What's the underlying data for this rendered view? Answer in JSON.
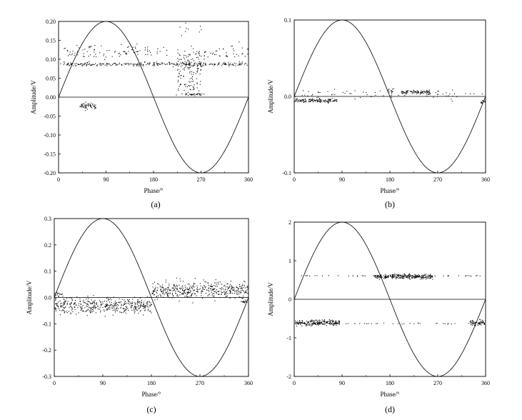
{
  "figure": {
    "panels": [
      {
        "caption": "(a)"
      },
      {
        "caption": "(b)"
      },
      {
        "caption": "(c)"
      },
      {
        "caption": "(d)"
      }
    ]
  },
  "chart_data": [
    {
      "type": "scatter",
      "caption": "(a)",
      "xlabel": "Phase/°",
      "ylabel": "Amplitude/V",
      "xlim": [
        0,
        360
      ],
      "ylim": [
        -0.2,
        0.2
      ],
      "xticks": [
        0,
        90,
        180,
        270,
        360
      ],
      "xtick_labels": [
        "0",
        "90",
        "180",
        "270",
        "360"
      ],
      "yticks": [
        -0.2,
        -0.15,
        -0.1,
        -0.05,
        0,
        0.05,
        0.1,
        0.15,
        0.2
      ],
      "ytick_labels": [
        "-0.20",
        "-0.15",
        "-0.10",
        "-0.05",
        "0.00",
        "0.05",
        "0.10",
        "0.15",
        "0.20"
      ],
      "reference_sine": {
        "amplitude": 0.2
      },
      "zero_line": true,
      "grid": false,
      "clusters": [
        {
          "x_range": [
            0,
            360
          ],
          "y_center": 0.088,
          "y_spread": 0.004,
          "density": 0.35
        },
        {
          "x_range": [
            10,
            210
          ],
          "y_center": 0.12,
          "y_spread": 0.015,
          "density": 0.2
        },
        {
          "x_range": [
            275,
            360
          ],
          "y_center": 0.12,
          "y_spread": 0.015,
          "density": 0.2
        },
        {
          "x_range": [
            225,
            270
          ],
          "y_center": 0.09,
          "y_spread": 0.035,
          "density": 1.0
        },
        {
          "x_range": [
            222,
            228
          ],
          "y_center": 0.04,
          "y_spread": 0.03,
          "density": 0.5
        },
        {
          "x_range": [
            228,
            270
          ],
          "y_center": 0.03,
          "y_spread": 0.02,
          "density": 0.3
        },
        {
          "x_range": [
            240,
            275
          ],
          "y_center": 0.008,
          "y_spread": 0.002,
          "density": 0.4
        },
        {
          "x_range": [
            225,
            270
          ],
          "y_center": 0.18,
          "y_spread": 0.015,
          "density": 0.08
        },
        {
          "x_range": [
            40,
            70
          ],
          "y_center": -0.022,
          "y_spread": 0.007,
          "density": 0.8
        }
      ]
    },
    {
      "type": "scatter",
      "caption": "(b)",
      "xlabel": "Phase/°",
      "ylabel": "Amplitude/V",
      "xlim": [
        0,
        360
      ],
      "ylim": [
        -0.1,
        0.1
      ],
      "xticks": [
        0,
        90,
        180,
        270,
        360
      ],
      "xtick_labels": [
        "0",
        "90",
        "180",
        "270",
        "360"
      ],
      "yticks": [
        -0.1,
        0,
        0.1
      ],
      "ytick_labels": [
        "-0.1",
        "0.0",
        "0.1"
      ],
      "reference_sine": {
        "amplitude": 0.1
      },
      "zero_line": true,
      "grid": false,
      "clusters": [
        {
          "x_range": [
            0,
            80
          ],
          "y_center": -0.005,
          "y_spread": 0.002,
          "density": 0.7
        },
        {
          "x_range": [
            175,
            185
          ],
          "y_center": 0.007,
          "y_spread": 0.002,
          "density": 0.5
        },
        {
          "x_range": [
            200,
            255
          ],
          "y_center": 0.006,
          "y_spread": 0.002,
          "density": 0.7
        },
        {
          "x_range": [
            350,
            360
          ],
          "y_center": -0.006,
          "y_spread": 0.002,
          "density": 0.5
        },
        {
          "x_range": [
            0,
            360
          ],
          "y_center": 0.003,
          "y_spread": 0.006,
          "density": 0.08
        }
      ]
    },
    {
      "type": "scatter",
      "caption": "(c)",
      "xlabel": "Phase/°",
      "ylabel": "Amplitude/V",
      "xlim": [
        0,
        360
      ],
      "ylim": [
        -0.3,
        0.3
      ],
      "xticks": [
        0,
        90,
        180,
        270,
        360
      ],
      "xtick_labels": [
        "0",
        "90",
        "180",
        "270",
        "360"
      ],
      "yticks": [
        -0.3,
        -0.2,
        -0.1,
        0,
        0.1,
        0.2,
        0.3
      ],
      "ytick_labels": [
        "-0.3",
        "-0.2",
        "-0.1",
        "0.0",
        "0.1",
        "0.2",
        "0.3"
      ],
      "reference_sine": {
        "amplitude": 0.3
      },
      "zero_line": true,
      "grid": false,
      "clusters": [
        {
          "x_range": [
            0,
            180
          ],
          "y_center": -0.03,
          "y_spread": 0.025,
          "density": 1.0
        },
        {
          "x_range": [
            180,
            360
          ],
          "y_center": 0.03,
          "y_spread": 0.025,
          "density": 1.0
        },
        {
          "x_range": [
            0,
            15
          ],
          "y_center": 0.015,
          "y_spread": 0.005,
          "density": 0.4
        },
        {
          "x_range": [
            345,
            360
          ],
          "y_center": -0.015,
          "y_spread": 0.005,
          "density": 0.4
        }
      ]
    },
    {
      "type": "scatter",
      "caption": "(d)",
      "xlabel": "Phase/°",
      "ylabel": "Amplitude/V",
      "xlim": [
        0,
        360
      ],
      "ylim": [
        -2,
        2
      ],
      "xticks": [
        0,
        90,
        180,
        270,
        360
      ],
      "xtick_labels": [
        "0",
        "90",
        "180",
        "270",
        "360"
      ],
      "yticks": [
        -2,
        -1,
        0,
        1,
        2
      ],
      "ytick_labels": [
        "-2",
        "-1",
        "0",
        "1",
        "2"
      ],
      "reference_sine": {
        "amplitude": 2
      },
      "zero_line": true,
      "grid": false,
      "clusters": [
        {
          "x_range": [
            0,
            85
          ],
          "y_center": -0.6,
          "y_spread": 0.06,
          "density": 1.0
        },
        {
          "x_range": [
            150,
            260
          ],
          "y_center": 0.6,
          "y_spread": 0.05,
          "density": 1.0
        },
        {
          "x_range": [
            330,
            360
          ],
          "y_center": -0.6,
          "y_spread": 0.06,
          "density": 0.8
        },
        {
          "x_range": [
            0,
            360
          ],
          "y_center": 0.62,
          "y_spread": 0.01,
          "density": 0.06
        },
        {
          "x_range": [
            0,
            360
          ],
          "y_center": -0.62,
          "y_spread": 0.01,
          "density": 0.06
        }
      ]
    }
  ]
}
